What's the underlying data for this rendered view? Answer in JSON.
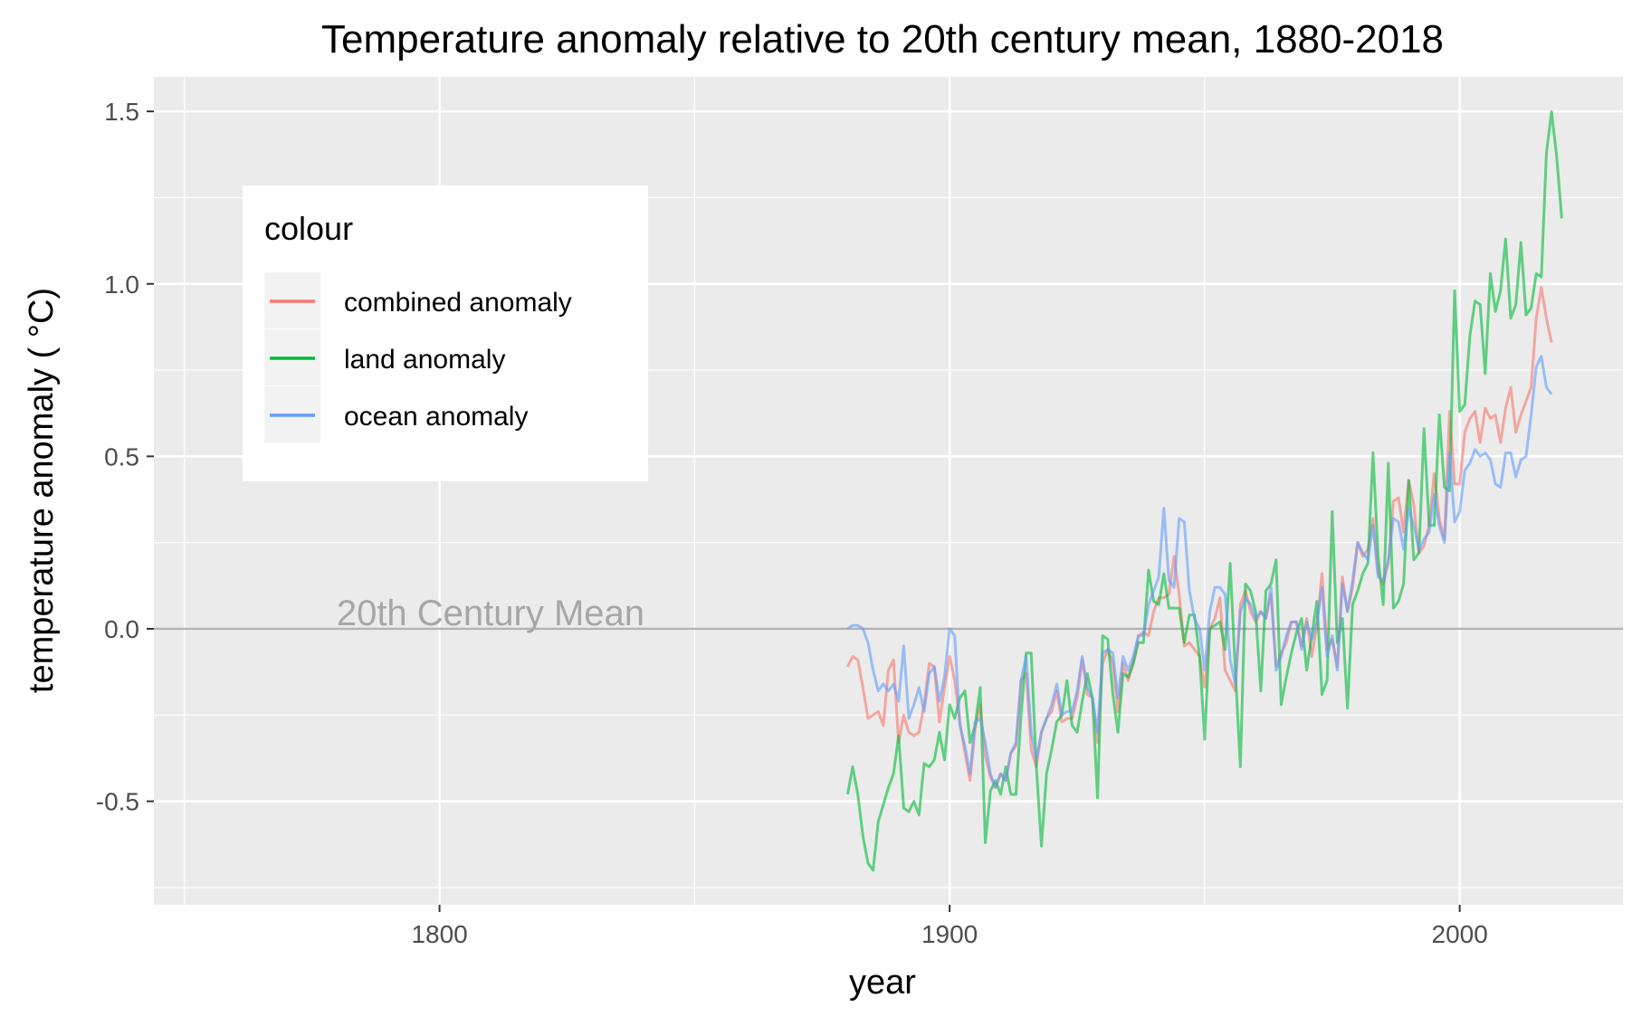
{
  "chart_data": {
    "type": "line",
    "title": "Temperature anomaly relative to 20th century mean, 1880-2018",
    "xlabel": "year",
    "ylabel": "temperature anomaly ( °C)",
    "xlim": [
      1744,
      2032
    ],
    "ylim": [
      -0.8,
      1.6
    ],
    "x_ticks": [
      1800,
      1900,
      2000
    ],
    "x_tick_labels": [
      "1800",
      "1900",
      "2000"
    ],
    "y_ticks": [
      -0.5,
      0.0,
      0.5,
      1.0,
      1.5
    ],
    "y_tick_labels": [
      "-0.5",
      "0.0",
      "0.5",
      "1.0",
      "1.5"
    ],
    "grid": true,
    "legend": {
      "title": "colour",
      "placement": "top-left inside"
    },
    "reference_line": {
      "y": 0.0,
      "label": "20th Century Mean",
      "label_x": 1810,
      "color": "#b3b3b3"
    },
    "x_start": 1880,
    "x_step": 1,
    "series": [
      {
        "name": "combined anomaly",
        "color": "#f8766d",
        "values": [
          -0.11,
          -0.08,
          -0.09,
          -0.17,
          -0.26,
          -0.25,
          -0.24,
          -0.28,
          -0.12,
          -0.09,
          -0.33,
          -0.25,
          -0.3,
          -0.31,
          -0.3,
          -0.22,
          -0.1,
          -0.11,
          -0.27,
          -0.17,
          -0.08,
          -0.15,
          -0.27,
          -0.36,
          -0.44,
          -0.29,
          -0.22,
          -0.37,
          -0.43,
          -0.46,
          -0.42,
          -0.44,
          -0.36,
          -0.34,
          -0.15,
          -0.13,
          -0.35,
          -0.4,
          -0.3,
          -0.26,
          -0.24,
          -0.18,
          -0.27,
          -0.26,
          -0.26,
          -0.2,
          -0.09,
          -0.19,
          -0.2,
          -0.33,
          -0.1,
          -0.06,
          -0.1,
          -0.24,
          -0.1,
          -0.15,
          -0.1,
          -0.02,
          -0.01,
          -0.02,
          0.05,
          0.09,
          0.09,
          0.1,
          0.21,
          0.1,
          -0.05,
          -0.04,
          -0.06,
          -0.08,
          -0.17,
          0,
          0.03,
          0.09,
          -0.12,
          -0.15,
          -0.18,
          0.07,
          0.11,
          0.05,
          0.02,
          0.05,
          0.03,
          0.1,
          -0.11,
          -0.07,
          -0.04,
          0.02,
          0.02,
          -0.05,
          0.03,
          -0.08,
          0.01,
          0.16,
          -0.06,
          -0.03,
          -0.11,
          0.15,
          0.05,
          0.12,
          0.25,
          0.21,
          0.23,
          0.32,
          0.16,
          0.13,
          0.19,
          0.37,
          0.38,
          0.28,
          0.43,
          0.36,
          0.22,
          0.24,
          0.3,
          0.45,
          0.32,
          0.26,
          0.63,
          0.42,
          0.42,
          0.57,
          0.61,
          0.63,
          0.54,
          0.64,
          0.61,
          0.62,
          0.54,
          0.64,
          0.7,
          0.57,
          0.62,
          0.66,
          0.7,
          0.9,
          0.99,
          0.9,
          0.83
        ]
      },
      {
        "name": "land anomaly",
        "color": "#00ba38",
        "values": [
          -0.48,
          -0.4,
          -0.48,
          -0.6,
          -0.68,
          -0.7,
          -0.56,
          -0.51,
          -0.46,
          -0.42,
          -0.31,
          -0.52,
          -0.53,
          -0.5,
          -0.54,
          -0.39,
          -0.4,
          -0.38,
          -0.3,
          -0.38,
          -0.22,
          -0.26,
          -0.2,
          -0.18,
          -0.33,
          -0.28,
          -0.17,
          -0.62,
          -0.47,
          -0.44,
          -0.48,
          -0.4,
          -0.48,
          -0.48,
          -0.25,
          -0.07,
          -0.07,
          -0.4,
          -0.63,
          -0.42,
          -0.35,
          -0.27,
          -0.25,
          -0.15,
          -0.28,
          -0.3,
          -0.21,
          -0.13,
          -0.2,
          -0.49,
          -0.02,
          -0.03,
          -0.19,
          -0.3,
          -0.13,
          -0.14,
          -0.1,
          -0.04,
          -0.04,
          0.17,
          0.08,
          0.07,
          0.16,
          0.06,
          0.06,
          0.06,
          -0.04,
          0.04,
          0.04,
          -0.08,
          -0.32,
          0,
          0.01,
          0.02,
          -0.06,
          0.19,
          -0.12,
          -0.4,
          0.13,
          0.11,
          0.05,
          -0.18,
          0.11,
          0.13,
          0.2,
          -0.22,
          -0.14,
          -0.07,
          -0.01,
          0.03,
          -0.12,
          -0.02,
          0.08,
          -0.19,
          -0.15,
          0.34,
          -0.04,
          0.03,
          -0.23,
          0.07,
          0.11,
          0.16,
          0.19,
          0.51,
          0.21,
          0.07,
          0.48,
          0.06,
          0.08,
          0.13,
          0.43,
          0.2,
          0.22,
          0.58,
          0.3,
          0.3,
          0.62,
          0.41,
          0.4,
          0.98,
          0.63,
          0.65,
          0.85,
          0.95,
          0.94,
          0.74,
          1.03,
          0.92,
          0.98,
          1.13,
          0.9,
          0.94,
          1.12,
          0.91,
          0.93,
          1.03,
          1.02,
          1.38,
          1.5,
          1.37,
          1.19
        ]
      },
      {
        "name": "ocean anomaly",
        "color": "#619cff",
        "values": [
          0,
          0.01,
          0.01,
          0,
          -0.04,
          -0.12,
          -0.18,
          -0.16,
          -0.18,
          -0.16,
          -0.21,
          -0.05,
          -0.26,
          -0.22,
          -0.17,
          -0.24,
          -0.13,
          -0.11,
          -0.21,
          -0.14,
          0,
          -0.02,
          -0.28,
          -0.34,
          -0.42,
          -0.27,
          -0.26,
          -0.33,
          -0.42,
          -0.46,
          -0.42,
          -0.44,
          -0.36,
          -0.33,
          -0.15,
          -0.08,
          -0.3,
          -0.38,
          -0.3,
          -0.26,
          -0.22,
          -0.16,
          -0.25,
          -0.24,
          -0.24,
          -0.18,
          -0.08,
          -0.17,
          -0.2,
          -0.3,
          -0.07,
          -0.06,
          -0.07,
          -0.2,
          -0.08,
          -0.12,
          -0.08,
          -0.02,
          -0.02,
          0.07,
          0.11,
          0.15,
          0.35,
          0.14,
          0.12,
          0.32,
          0.31,
          0.11,
          0.03,
          0,
          -0.12,
          0.05,
          0.12,
          0.12,
          0.1,
          -0.09,
          -0.16,
          0.05,
          0.09,
          0.07,
          0.03,
          0.05,
          0.03,
          0.12,
          -0.12,
          -0.08,
          -0.02,
          0.02,
          0.02,
          -0.06,
          0.02,
          -0.03,
          0.02,
          0.12,
          -0.08,
          -0.02,
          -0.12,
          0.13,
          0.05,
          0.14,
          0.25,
          0.22,
          0.2,
          0.3,
          0.15,
          0.14,
          0.2,
          0.32,
          0.31,
          0.23,
          0.35,
          0.3,
          0.23,
          0.26,
          0.28,
          0.39,
          0.3,
          0.25,
          0.51,
          0.31,
          0.34,
          0.46,
          0.48,
          0.52,
          0.5,
          0.51,
          0.49,
          0.42,
          0.41,
          0.51,
          0.51,
          0.44,
          0.49,
          0.5,
          0.62,
          0.76,
          0.79,
          0.7,
          0.68
        ]
      }
    ]
  }
}
